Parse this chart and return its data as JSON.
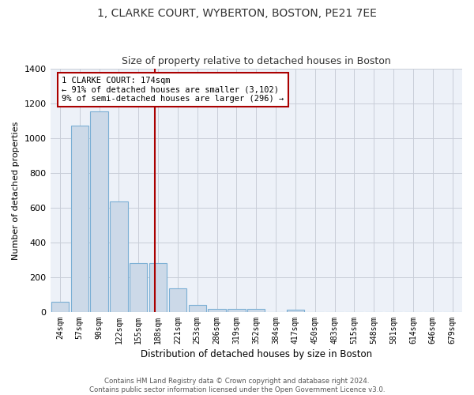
{
  "title": "1, CLARKE COURT, WYBERTON, BOSTON, PE21 7EE",
  "subtitle": "Size of property relative to detached houses in Boston",
  "xlabel": "Distribution of detached houses by size in Boston",
  "ylabel": "Number of detached properties",
  "bar_color": "#ccd9e8",
  "bar_edge_color": "#7bafd4",
  "background_color": "#edf1f8",
  "grid_color": "#c8cdd8",
  "categories": [
    "24sqm",
    "57sqm",
    "90sqm",
    "122sqm",
    "155sqm",
    "188sqm",
    "221sqm",
    "253sqm",
    "286sqm",
    "319sqm",
    "352sqm",
    "384sqm",
    "417sqm",
    "450sqm",
    "483sqm",
    "515sqm",
    "548sqm",
    "581sqm",
    "614sqm",
    "646sqm",
    "679sqm"
  ],
  "values": [
    60,
    1075,
    1155,
    635,
    280,
    280,
    135,
    40,
    20,
    20,
    20,
    0,
    15,
    0,
    0,
    0,
    0,
    0,
    0,
    0,
    0
  ],
  "ylim": [
    0,
    1400
  ],
  "yticks": [
    0,
    200,
    400,
    600,
    800,
    1000,
    1200,
    1400
  ],
  "vline_x": 4.82,
  "annotation_text": "1 CLARKE COURT: 174sqm\n← 91% of detached houses are smaller (3,102)\n9% of semi-detached houses are larger (296) →",
  "vline_color": "#aa0000",
  "annotation_box_color": "#aa0000",
  "footer": "Contains HM Land Registry data © Crown copyright and database right 2024.\nContains public sector information licensed under the Open Government Licence v3.0."
}
